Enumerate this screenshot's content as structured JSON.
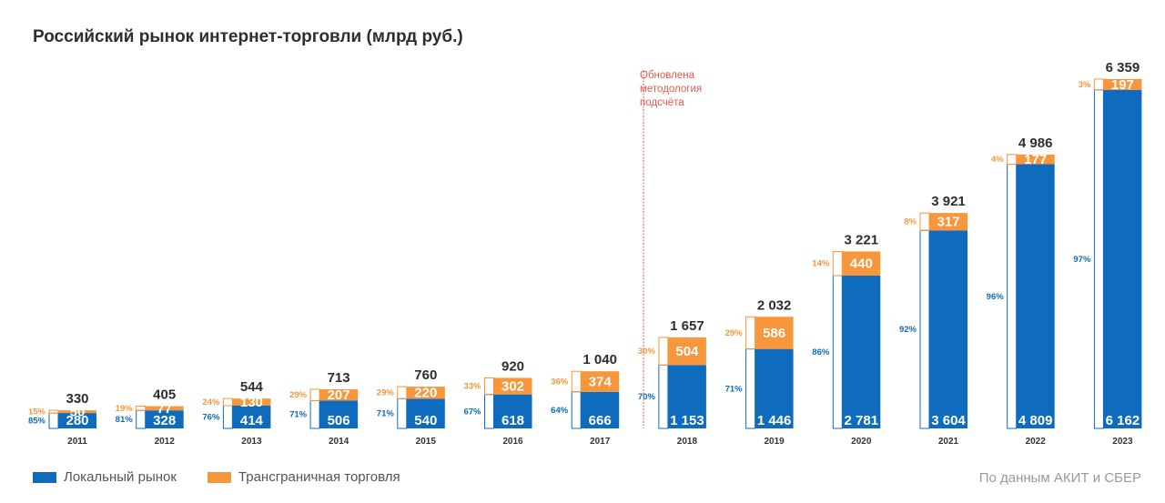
{
  "title": "Российский рынок интернет-торговли (млрд руб.)",
  "note": [
    "Обновлена",
    "методология",
    "подсчёта"
  ],
  "source": "По данным АКИТ и СБЕР",
  "colors": {
    "local": "#0f6bbd",
    "cross": "#f7963b",
    "note": "#e05a4e"
  },
  "legend": {
    "local": "Локальный рынок",
    "cross": "Трансграничная торговля"
  },
  "chart_data": {
    "type": "bar",
    "stacked": true,
    "categories": [
      "2011",
      "2012",
      "2013",
      "2014",
      "2015",
      "2016",
      "2017",
      "2018",
      "2019",
      "2020",
      "2021",
      "2022",
      "2023"
    ],
    "series": [
      {
        "name": "Локальный рынок",
        "values": [
          280,
          328,
          414,
          506,
          540,
          618,
          666,
          1153,
          1446,
          2781,
          3604,
          4809,
          6162
        ],
        "labels": [
          "280",
          "328",
          "414",
          "506",
          "540",
          "618",
          "666",
          "1 153",
          "1 446",
          "2 781",
          "3 604",
          "4 809",
          "6 162"
        ],
        "shares": [
          "85%",
          "81%",
          "76%",
          "71%",
          "71%",
          "67%",
          "64%",
          "70%",
          "71%",
          "86%",
          "92%",
          "96%",
          "97%"
        ]
      },
      {
        "name": "Трансграничная торговля",
        "values": [
          50,
          77,
          130,
          207,
          220,
          302,
          374,
          504,
          586,
          440,
          317,
          177,
          197
        ],
        "labels": [
          "50",
          "77",
          "130",
          "207",
          "220",
          "302",
          "374",
          "504",
          "586",
          "440",
          "317",
          "177",
          "197"
        ],
        "shares": [
          "15%",
          "19%",
          "24%",
          "29%",
          "29%",
          "33%",
          "36%",
          "30%",
          "29%",
          "14%",
          "8%",
          "4%",
          "3%"
        ]
      }
    ],
    "totals": [
      330,
      405,
      544,
      713,
      760,
      920,
      1040,
      1657,
      2032,
      3221,
      3921,
      4986,
      6359
    ],
    "total_labels": [
      "330",
      "405",
      "544",
      "713",
      "760",
      "920",
      "1 040",
      "1 657",
      "2 032",
      "3 221",
      "3 921",
      "4 986",
      "6 359"
    ],
    "methodology_break_before": "2018"
  }
}
